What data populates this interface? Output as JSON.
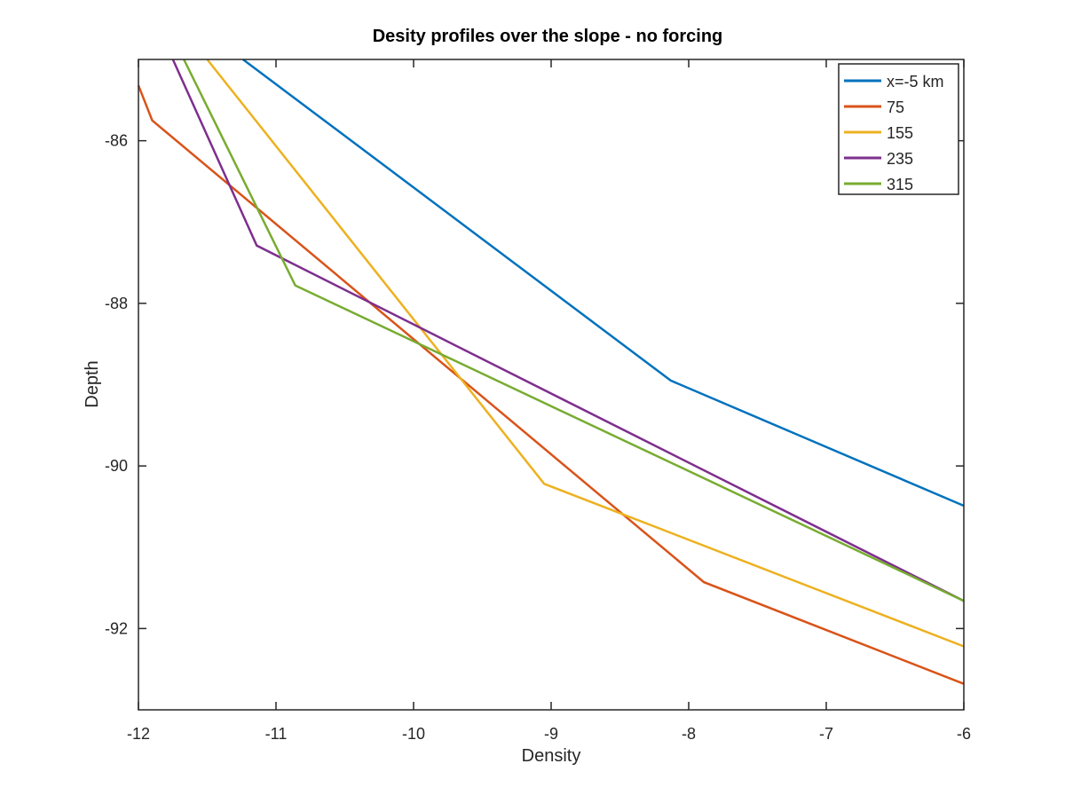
{
  "chart_data": {
    "type": "line",
    "title": "Desity profiles over the slope - no forcing",
    "xlabel": "Density",
    "ylabel": "Depth",
    "xlim": [
      -12,
      -6
    ],
    "ylim": [
      -93,
      -85
    ],
    "xticks": [
      -12,
      -11,
      -10,
      -9,
      -8,
      -7,
      -6
    ],
    "yticks": [
      -92,
      -90,
      -88,
      -86
    ],
    "grid": false,
    "legend_position": "top-right",
    "series": [
      {
        "name": "x=-5 km",
        "color": "#0072BD",
        "x": [
          -11.24,
          -8.13,
          -6
        ],
        "y": [
          -85.0,
          -88.95,
          -90.49
        ]
      },
      {
        "name": "75",
        "color": "#D95319",
        "x": [
          -12,
          -11.9,
          -7.89,
          -6
        ],
        "y": [
          -85.32,
          -85.75,
          -91.43,
          -92.68
        ]
      },
      {
        "name": "155",
        "color": "#EDB120",
        "x": [
          -11.5,
          -9.05,
          -6
        ],
        "y": [
          -85.0,
          -90.22,
          -92.22
        ]
      },
      {
        "name": "235",
        "color": "#7E2F8E",
        "x": [
          -11.75,
          -11.14,
          -6
        ],
        "y": [
          -85.0,
          -87.29,
          -91.66
        ]
      },
      {
        "name": "315",
        "color": "#77AC30",
        "x": [
          -11.67,
          -10.86,
          -6
        ],
        "y": [
          -85.0,
          -87.78,
          -91.66
        ]
      }
    ]
  }
}
